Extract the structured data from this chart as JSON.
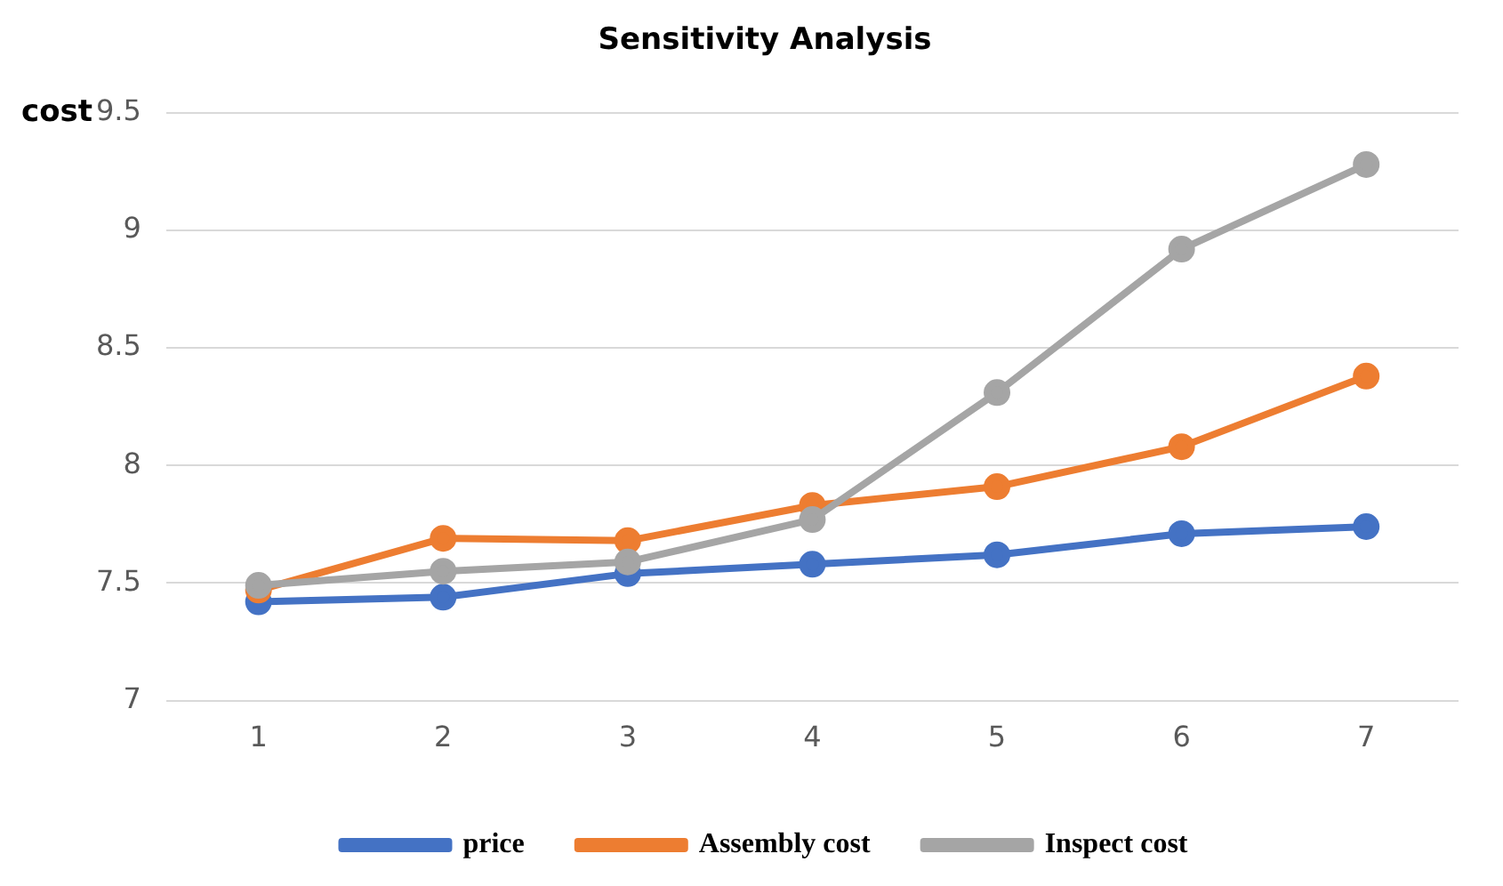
{
  "chart_data": {
    "type": "line",
    "title": "Sensitivity Analysis",
    "ylabel": "cost",
    "categories": [
      "1",
      "2",
      "3",
      "4",
      "5",
      "6",
      "7"
    ],
    "series": [
      {
        "name": "price",
        "color": "#4472c4",
        "values": [
          7.42,
          7.44,
          7.54,
          7.58,
          7.62,
          7.71,
          7.74
        ]
      },
      {
        "name": "Assembly cost",
        "color": "#ed7d31",
        "values": [
          7.47,
          7.69,
          7.68,
          7.83,
          7.91,
          8.08,
          8.38
        ]
      },
      {
        "name": "Inspect cost",
        "color": "#a5a5a5",
        "values": [
          7.49,
          7.55,
          7.59,
          7.77,
          8.31,
          8.92,
          9.28
        ]
      }
    ],
    "ylim": [
      7,
      9.5
    ],
    "yticks": [
      7,
      7.5,
      8,
      8.5,
      9,
      9.5
    ],
    "grid": "y",
    "legend": "bottom",
    "marker": "circle",
    "line_style": "solid"
  }
}
